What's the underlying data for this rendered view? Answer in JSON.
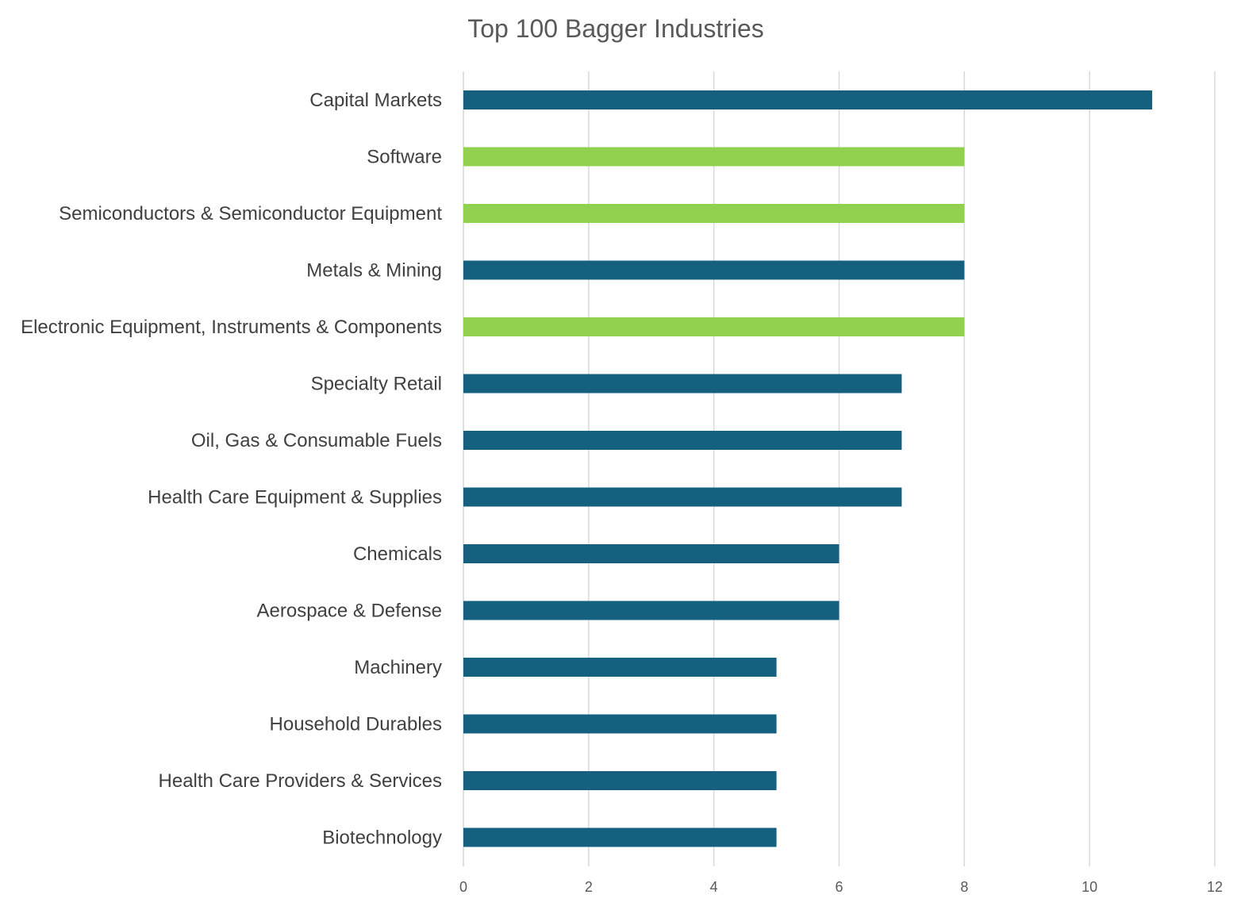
{
  "chart_data": {
    "type": "bar",
    "orientation": "horizontal",
    "title": "Top 100 Bagger Industries",
    "xlabel": "",
    "ylabel": "",
    "xlim": [
      0,
      12
    ],
    "xticks": [
      0,
      2,
      4,
      6,
      8,
      10,
      12
    ],
    "grid": true,
    "legend": "none",
    "colors": {
      "default": "#16607f",
      "highlight": "#92d050"
    },
    "categories": [
      "Capital Markets",
      "Software",
      "Semiconductors & Semiconductor Equipment",
      "Metals & Mining",
      "Electronic Equipment, Instruments & Components",
      "Specialty Retail",
      "Oil, Gas & Consumable Fuels",
      "Health Care Equipment & Supplies",
      "Chemicals",
      "Aerospace & Defense",
      "Machinery",
      "Household Durables",
      "Health Care Providers & Services",
      "Biotechnology"
    ],
    "values": [
      11,
      8,
      8,
      8,
      8,
      7,
      7,
      7,
      6,
      6,
      5,
      5,
      5,
      5
    ],
    "bar_colors": [
      "#16607f",
      "#92d050",
      "#92d050",
      "#16607f",
      "#92d050",
      "#16607f",
      "#16607f",
      "#16607f",
      "#16607f",
      "#16607f",
      "#16607f",
      "#16607f",
      "#16607f",
      "#16607f"
    ]
  }
}
